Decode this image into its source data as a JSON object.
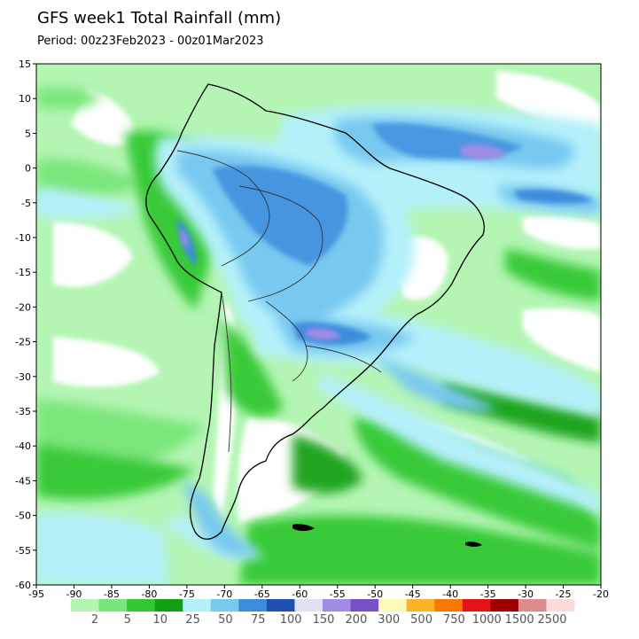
{
  "title": "GFS week1 Total Rainfall (mm)",
  "subtitle": "Period: 00z23Feb2023 - 00z01Mar2023",
  "map": {
    "lon_range": [
      -95,
      -20
    ],
    "lat_range": [
      -60,
      15
    ],
    "x_ticks": [
      "-95",
      "-90",
      "-85",
      "-80",
      "-75",
      "-70",
      "-65",
      "-60",
      "-55",
      "-50",
      "-45",
      "-40",
      "-35",
      "-30",
      "-25",
      "-20"
    ],
    "y_ticks": [
      "15",
      "10",
      "5",
      "0",
      "-5",
      "-10",
      "-15",
      "-20",
      "-25",
      "-30",
      "-35",
      "-40",
      "-45",
      "-50",
      "-55",
      "-60"
    ]
  },
  "legend": {
    "labels": [
      "2",
      "5",
      "10",
      "25",
      "50",
      "75",
      "100",
      "150",
      "200",
      "300",
      "500",
      "750",
      "1000",
      "1500",
      "2500"
    ],
    "colors": [
      "#b4f5b4",
      "#78e678",
      "#32c832",
      "#14a014",
      "#b4f0fa",
      "#78c8f0",
      "#3c8cdc",
      "#1e50b4",
      "#e1e1f5",
      "#a08ce6",
      "#7850c8",
      "#fafab4",
      "#fab428",
      "#fa7800",
      "#e61414",
      "#a00000",
      "#dc8c8c",
      "#fadcdc"
    ]
  }
}
